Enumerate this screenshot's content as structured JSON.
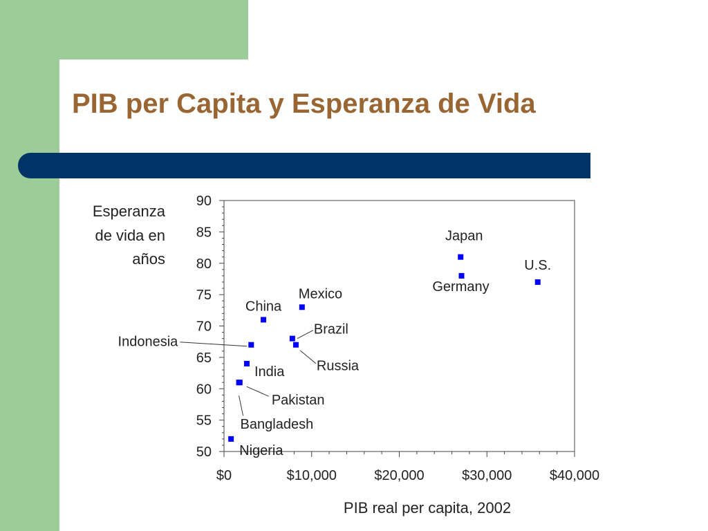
{
  "slide": {
    "title": "PIB per Capita y Esperanza de Vida",
    "colors": {
      "title": "#996633",
      "accent_bar": "#003366",
      "sidebar": "#9ccc97",
      "points": "#0000ff"
    }
  },
  "chart_data": {
    "type": "scatter",
    "ylabel_lines": [
      "Esperanza",
      "de vida en",
      "años"
    ],
    "xlabel": "PIB real per capita, 2002",
    "xlim": [
      0,
      40000
    ],
    "ylim": [
      50,
      90
    ],
    "x_ticks": [
      0,
      10000,
      20000,
      30000,
      40000
    ],
    "x_tick_labels": [
      "$0",
      "$10,000",
      "$20,000",
      "$30,000",
      "$40,000"
    ],
    "y_ticks": [
      50,
      55,
      60,
      65,
      70,
      75,
      80,
      85,
      90
    ],
    "y_tick_labels": [
      "50",
      "55",
      "60",
      "65",
      "70",
      "75",
      "80",
      "85",
      "90"
    ],
    "grid": false,
    "points": [
      {
        "label": "Nigeria",
        "x": 800,
        "y": 52
      },
      {
        "label": "Bangladesh",
        "x": 1700,
        "y": 61
      },
      {
        "label": "Pakistan",
        "x": 1800,
        "y": 61
      },
      {
        "label": "India",
        "x": 2600,
        "y": 64
      },
      {
        "label": "Indonesia",
        "x": 3100,
        "y": 67
      },
      {
        "label": "China",
        "x": 4500,
        "y": 71
      },
      {
        "label": "Brazil",
        "x": 7800,
        "y": 68
      },
      {
        "label": "Russia",
        "x": 8200,
        "y": 67
      },
      {
        "label": "Mexico",
        "x": 8900,
        "y": 73
      },
      {
        "label": "Japan",
        "x": 27000,
        "y": 81
      },
      {
        "label": "Germany",
        "x": 27100,
        "y": 78
      },
      {
        "label": "U.S.",
        "x": 35800,
        "y": 77
      }
    ]
  }
}
